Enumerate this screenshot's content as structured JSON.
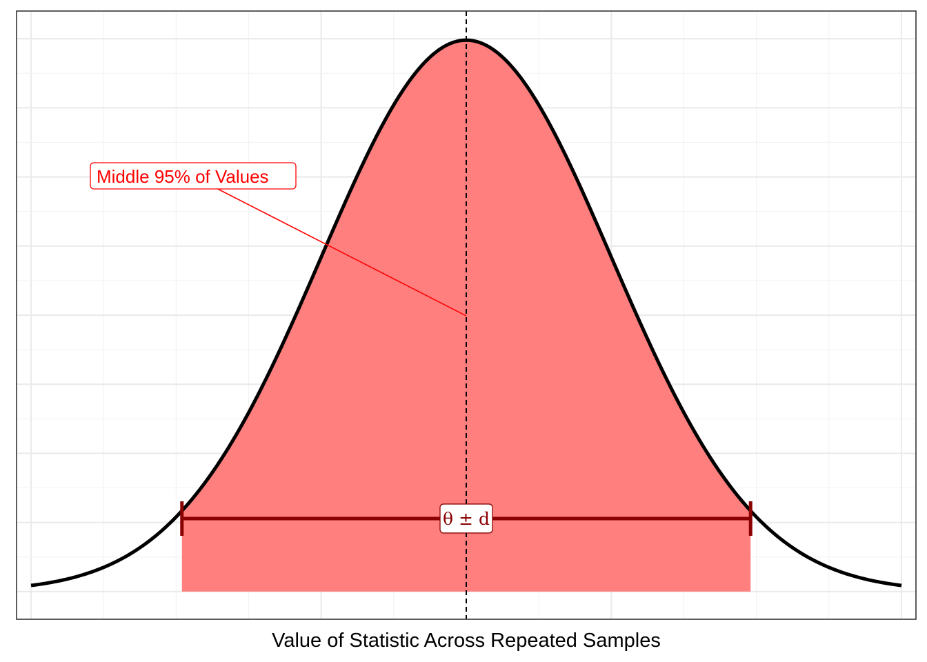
{
  "chart_data": {
    "type": "area",
    "xlabel": "Value of Statistic Across Repeated Samples",
    "ylabel": "",
    "distribution": "normal",
    "mean": 0,
    "sd": 1,
    "xlim": [
      -3.1,
      3.1
    ],
    "curve_range": [
      -3,
      3
    ],
    "shaded_range": [
      -1.96,
      1.96
    ],
    "center_line_x": 0,
    "show_axis_ticks": false,
    "grid": true,
    "annotations": {
      "label": "Middle 95% of Values",
      "interval_label": "θ ± d"
    },
    "colors": {
      "fill": "#ff7f7f",
      "curve": "#000000",
      "interval": "#8b0000",
      "label": "#ff0000"
    }
  }
}
